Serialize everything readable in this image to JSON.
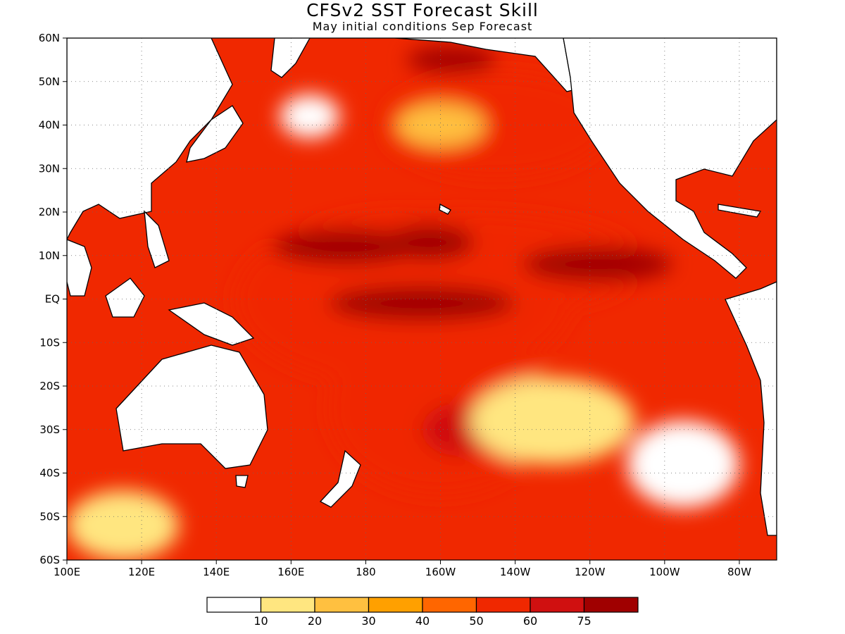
{
  "title": "CFSv2 SST Forecast Skill",
  "subtitle": "May initial conditions  Sep Forecast",
  "map": {
    "lon_range": [
      100,
      290
    ],
    "lat_range": [
      -60,
      60
    ],
    "lat_labels": [
      {
        "v": 60,
        "t": "60N"
      },
      {
        "v": 50,
        "t": "50N"
      },
      {
        "v": 40,
        "t": "40N"
      },
      {
        "v": 30,
        "t": "30N"
      },
      {
        "v": 20,
        "t": "20N"
      },
      {
        "v": 10,
        "t": "10N"
      },
      {
        "v": 0,
        "t": "EQ"
      },
      {
        "v": -10,
        "t": "10S"
      },
      {
        "v": -20,
        "t": "20S"
      },
      {
        "v": -30,
        "t": "30S"
      },
      {
        "v": -40,
        "t": "40S"
      },
      {
        "v": -50,
        "t": "50S"
      },
      {
        "v": -60,
        "t": "60S"
      }
    ],
    "lon_labels": [
      {
        "v": 100,
        "t": "100E"
      },
      {
        "v": 120,
        "t": "120E"
      },
      {
        "v": 140,
        "t": "140E"
      },
      {
        "v": 160,
        "t": "160E"
      },
      {
        "v": 180,
        "t": "180"
      },
      {
        "v": 200,
        "t": "160W"
      },
      {
        "v": 220,
        "t": "140W"
      },
      {
        "v": 240,
        "t": "120W"
      },
      {
        "v": 260,
        "t": "100W"
      },
      {
        "v": 280,
        "t": "80W"
      }
    ],
    "grid": true
  },
  "colorbar": {
    "colors": [
      "#ffffff",
      "#ffe680",
      "#ffc040",
      "#ffa000",
      "#ff6600",
      "#f02800",
      "#d01010",
      "#a00000"
    ],
    "labels": [
      "10",
      "20",
      "30",
      "40",
      "50",
      "60",
      "75"
    ]
  },
  "skill_regions": [
    {
      "lon": 190,
      "lat": 0,
      "rx": 45,
      "ry": 20,
      "level": 5
    },
    {
      "lon": 205,
      "lat": 8,
      "rx": 50,
      "ry": 12,
      "level": 5
    },
    {
      "lon": 200,
      "lat": -25,
      "rx": 30,
      "ry": 20,
      "level": 5
    },
    {
      "lon": 215,
      "lat": 40,
      "rx": 30,
      "ry": 12,
      "level": 5
    },
    {
      "lon": 175,
      "lat": 12,
      "rx": 20,
      "ry": 4,
      "level": 7
    },
    {
      "lon": 197,
      "lat": 13,
      "rx": 12,
      "ry": 4,
      "level": 7
    },
    {
      "lon": 242,
      "lat": 8,
      "rx": 20,
      "ry": 4,
      "level": 7
    },
    {
      "lon": 195,
      "lat": -1,
      "rx": 25,
      "ry": 4,
      "level": 7
    },
    {
      "lon": 203,
      "lat": 55,
      "rx": 12,
      "ry": 3,
      "level": 7
    },
    {
      "lon": 205,
      "lat": -30,
      "rx": 10,
      "ry": 6,
      "level": 6
    },
    {
      "lon": 200,
      "lat": 40,
      "rx": 12,
      "ry": 5,
      "level": 2
    },
    {
      "lon": 165,
      "lat": 42,
      "rx": 8,
      "ry": 5,
      "level": 0
    },
    {
      "lon": 230,
      "lat": -28,
      "rx": 22,
      "ry": 10,
      "level": 1
    },
    {
      "lon": 265,
      "lat": -38,
      "rx": 15,
      "ry": 10,
      "level": 0
    },
    {
      "lon": 115,
      "lat": -52,
      "rx": 15,
      "ry": 8,
      "level": 1
    }
  ]
}
